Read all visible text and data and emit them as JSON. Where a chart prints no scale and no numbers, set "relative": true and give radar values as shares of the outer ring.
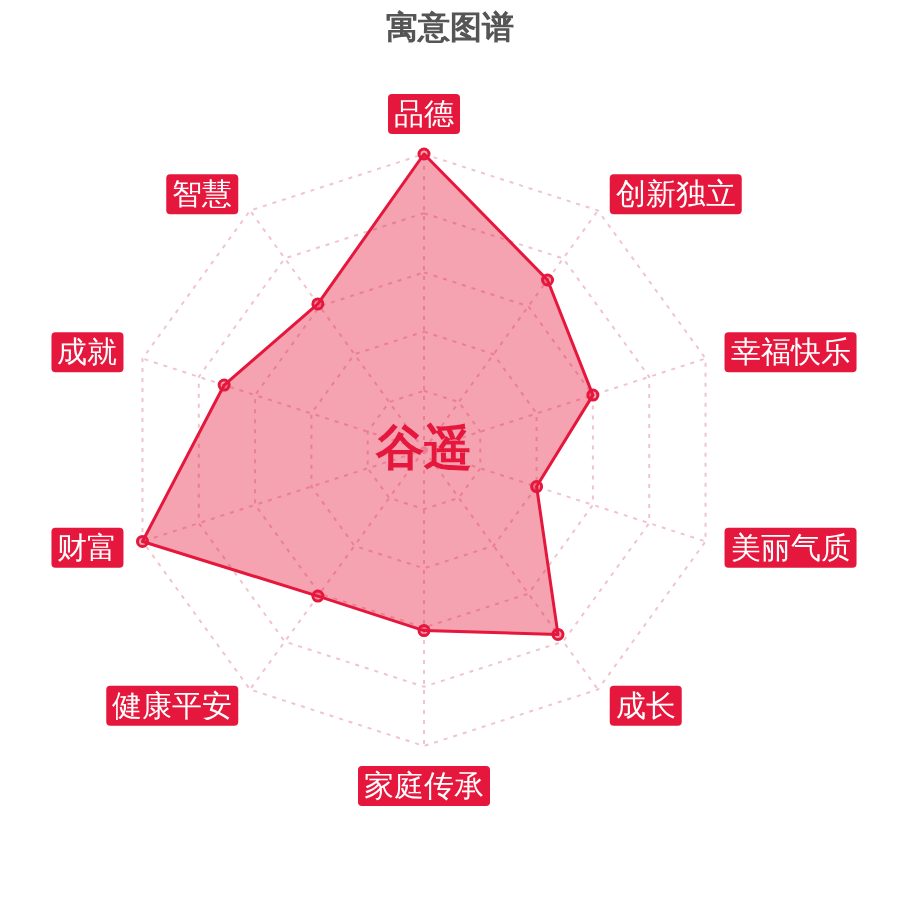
{
  "chart_data": {
    "type": "radar",
    "title": "寓意图谱",
    "categories": [
      "品德",
      "创新独立",
      "幸福快乐",
      "美丽气质",
      "成长",
      "家庭传承",
      "健康平安",
      "财富",
      "成就",
      "智慧"
    ],
    "series": [
      {
        "color": "#e5173c",
        "values": [
          1.0,
          0.71,
          0.6,
          0.4,
          0.77,
          0.61,
          0.61,
          1.0,
          0.71,
          0.61
        ]
      }
    ],
    "relative": true,
    "grid": true,
    "marker": "circle",
    "annotations": [
      "谷遥"
    ]
  }
}
